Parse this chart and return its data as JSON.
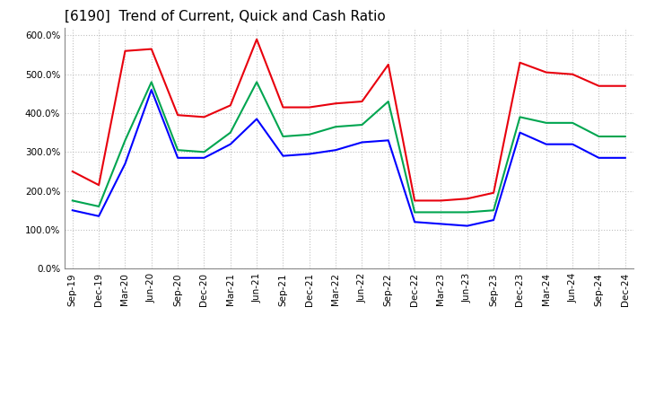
{
  "title": "[6190]  Trend of Current, Quick and Cash Ratio",
  "ylim": [
    0,
    620
  ],
  "yticks": [
    0,
    100,
    200,
    300,
    400,
    500,
    600
  ],
  "ytick_labels": [
    "0.0%",
    "100.0%",
    "200.0%",
    "300.0%",
    "400.0%",
    "500.0%",
    "600.0%"
  ],
  "categories": [
    "Sep-19",
    "Dec-19",
    "Mar-20",
    "Jun-20",
    "Sep-20",
    "Dec-20",
    "Mar-21",
    "Jun-21",
    "Sep-21",
    "Dec-21",
    "Mar-22",
    "Jun-22",
    "Sep-22",
    "Dec-22",
    "Mar-23",
    "Jun-23",
    "Sep-23",
    "Dec-23",
    "Mar-24",
    "Jun-24",
    "Sep-24",
    "Dec-24"
  ],
  "current_ratio": [
    250,
    215,
    560,
    565,
    395,
    390,
    420,
    590,
    415,
    415,
    425,
    430,
    525,
    175,
    175,
    180,
    195,
    530,
    505,
    500,
    470,
    470
  ],
  "quick_ratio": [
    175,
    160,
    330,
    480,
    305,
    300,
    350,
    480,
    340,
    345,
    365,
    370,
    430,
    145,
    145,
    145,
    150,
    390,
    375,
    375,
    340,
    340
  ],
  "cash_ratio": [
    150,
    135,
    270,
    460,
    285,
    285,
    320,
    385,
    290,
    295,
    305,
    325,
    330,
    120,
    115,
    110,
    125,
    350,
    320,
    320,
    285,
    285
  ],
  "line_colors": {
    "current": "#e8000d",
    "quick": "#00a550",
    "cash": "#0000ff"
  },
  "background_color": "#ffffff",
  "grid_color": "#c0c0c0",
  "title_fontsize": 11,
  "tick_fontsize": 7.5,
  "legend_fontsize": 9
}
